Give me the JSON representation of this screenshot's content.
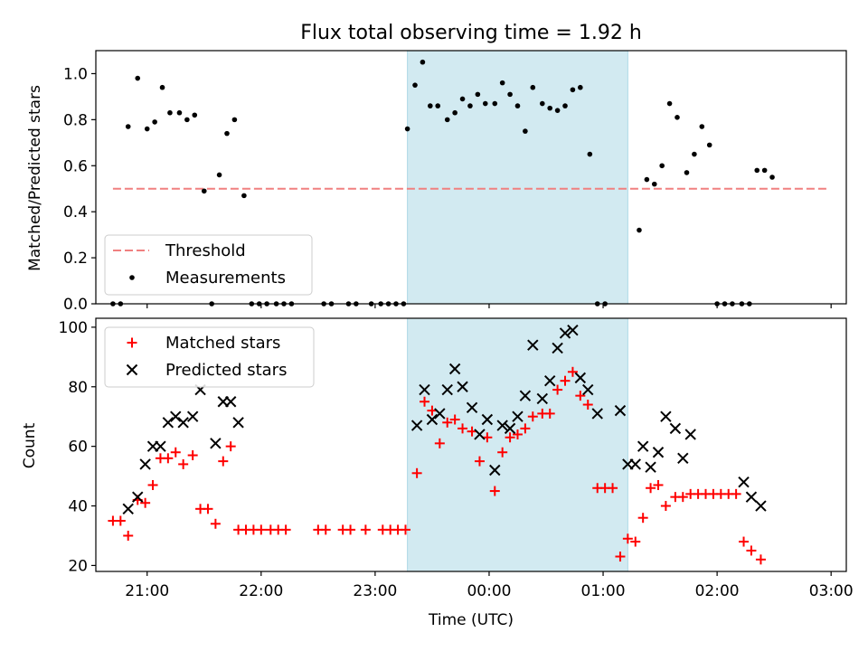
{
  "chart_data": [
    {
      "type": "scatter",
      "title": "Flux total observing time = 1.92 h",
      "xlabel": "",
      "ylabel": "Matched/Predicted stars",
      "ylim": [
        0,
        1.1
      ],
      "xlim": [
        "20:33",
        "03:08"
      ],
      "yticks": [
        0.0,
        0.2,
        0.4,
        0.6,
        0.8,
        1.0
      ],
      "ytick_labels": [
        "0.0",
        "0.2",
        "0.4",
        "0.6",
        "0.8",
        "1.0"
      ],
      "shaded_interval": [
        "23:17",
        "01:13"
      ],
      "shade_color": "#add8e6",
      "legend_position": "lower-left",
      "threshold": {
        "name": "Threshold",
        "value": 0.5,
        "x_range": [
          "20:42",
          "02:58"
        ],
        "color": "#f08080",
        "style": "dashed"
      },
      "series": [
        {
          "name": "Measurements",
          "color": "#000000",
          "marker": "dot",
          "points": [
            [
              "20:42",
              0.0
            ],
            [
              "20:46",
              0.0
            ],
            [
              "20:50",
              0.77
            ],
            [
              "20:55",
              0.98
            ],
            [
              "21:00",
              0.76
            ],
            [
              "21:04",
              0.79
            ],
            [
              "21:08",
              0.94
            ],
            [
              "21:12",
              0.83
            ],
            [
              "21:17",
              0.83
            ],
            [
              "21:21",
              0.8
            ],
            [
              "21:25",
              0.82
            ],
            [
              "21:30",
              0.49
            ],
            [
              "21:34",
              0.0
            ],
            [
              "21:38",
              0.56
            ],
            [
              "21:42",
              0.74
            ],
            [
              "21:46",
              0.8
            ],
            [
              "21:51",
              0.47
            ],
            [
              "21:55",
              0.0
            ],
            [
              "21:59",
              0.0
            ],
            [
              "22:03",
              0.0
            ],
            [
              "22:08",
              0.0
            ],
            [
              "22:12",
              0.0
            ],
            [
              "22:16",
              0.0
            ],
            [
              "22:33",
              0.0
            ],
            [
              "22:37",
              0.0
            ],
            [
              "22:46",
              0.0
            ],
            [
              "22:50",
              0.0
            ],
            [
              "22:58",
              0.0
            ],
            [
              "23:03",
              0.0
            ],
            [
              "23:07",
              0.0
            ],
            [
              "23:11",
              0.0
            ],
            [
              "23:15",
              0.0
            ],
            [
              "23:17",
              0.76
            ],
            [
              "23:21",
              0.95
            ],
            [
              "23:25",
              1.05
            ],
            [
              "23:29",
              0.86
            ],
            [
              "23:33",
              0.86
            ],
            [
              "23:38",
              0.8
            ],
            [
              "23:42",
              0.83
            ],
            [
              "23:46",
              0.89
            ],
            [
              "23:50",
              0.86
            ],
            [
              "23:54",
              0.91
            ],
            [
              "23:58",
              0.87
            ],
            [
              "00:03",
              0.87
            ],
            [
              "00:07",
              0.96
            ],
            [
              "00:11",
              0.91
            ],
            [
              "00:15",
              0.86
            ],
            [
              "00:19",
              0.75
            ],
            [
              "00:23",
              0.94
            ],
            [
              "00:28",
              0.87
            ],
            [
              "00:32",
              0.85
            ],
            [
              "00:36",
              0.84
            ],
            [
              "00:40",
              0.86
            ],
            [
              "00:44",
              0.93
            ],
            [
              "00:48",
              0.94
            ],
            [
              "00:53",
              0.65
            ],
            [
              "00:57",
              0.0
            ],
            [
              "01:01",
              0.0
            ],
            [
              "01:19",
              0.32
            ],
            [
              "01:23",
              0.54
            ],
            [
              "01:27",
              0.52
            ],
            [
              "01:31",
              0.6
            ],
            [
              "01:35",
              0.87
            ],
            [
              "01:39",
              0.81
            ],
            [
              "01:44",
              0.57
            ],
            [
              "01:48",
              0.65
            ],
            [
              "01:52",
              0.77
            ],
            [
              "01:56",
              0.69
            ],
            [
              "02:00",
              0.0
            ],
            [
              "02:04",
              0.0
            ],
            [
              "02:08",
              0.0
            ],
            [
              "02:13",
              0.0
            ],
            [
              "02:17",
              0.0
            ],
            [
              "02:21",
              0.58
            ],
            [
              "02:25",
              0.58
            ],
            [
              "02:29",
              0.55
            ]
          ]
        }
      ]
    },
    {
      "type": "scatter",
      "title": "",
      "xlabel": "Time (UTC)",
      "ylabel": "Count",
      "ylim": [
        18,
        103
      ],
      "xlim": [
        "20:33",
        "03:08"
      ],
      "yticks": [
        20,
        40,
        60,
        80,
        100
      ],
      "ytick_labels": [
        "20",
        "40",
        "60",
        "80",
        "100"
      ],
      "xticks": [
        "21:00",
        "22:00",
        "23:00",
        "00:00",
        "01:00",
        "02:00",
        "03:00"
      ],
      "shaded_interval": [
        "23:17",
        "01:13"
      ],
      "shade_color": "#add8e6",
      "legend_position": "upper-left",
      "series": [
        {
          "name": "Matched stars",
          "color": "#ff0000",
          "marker": "plus",
          "points": [
            [
              "20:42",
              35
            ],
            [
              "20:46",
              35
            ],
            [
              "20:50",
              30
            ],
            [
              "20:55",
              42
            ],
            [
              "20:59",
              41
            ],
            [
              "21:03",
              47
            ],
            [
              "21:07",
              56
            ],
            [
              "21:11",
              56
            ],
            [
              "21:15",
              58
            ],
            [
              "21:19",
              54
            ],
            [
              "21:24",
              57
            ],
            [
              "21:28",
              39
            ],
            [
              "21:32",
              39
            ],
            [
              "21:36",
              34
            ],
            [
              "21:40",
              55
            ],
            [
              "21:44",
              60
            ],
            [
              "21:48",
              32
            ],
            [
              "21:52",
              32
            ],
            [
              "21:56",
              32
            ],
            [
              "22:00",
              32
            ],
            [
              "22:05",
              32
            ],
            [
              "22:09",
              32
            ],
            [
              "22:13",
              32
            ],
            [
              "22:30",
              32
            ],
            [
              "22:34",
              32
            ],
            [
              "22:43",
              32
            ],
            [
              "22:47",
              32
            ],
            [
              "22:55",
              32
            ],
            [
              "23:04",
              32
            ],
            [
              "23:08",
              32
            ],
            [
              "23:12",
              32
            ],
            [
              "23:16",
              32
            ],
            [
              "23:22",
              51
            ],
            [
              "23:26",
              75
            ],
            [
              "23:30",
              72
            ],
            [
              "23:34",
              61
            ],
            [
              "23:38",
              68
            ],
            [
              "23:42",
              69
            ],
            [
              "23:46",
              66
            ],
            [
              "23:51",
              65
            ],
            [
              "23:55",
              55
            ],
            [
              "23:59",
              63
            ],
            [
              "00:03",
              45
            ],
            [
              "00:07",
              58
            ],
            [
              "00:11",
              63
            ],
            [
              "00:15",
              64
            ],
            [
              "00:19",
              66
            ],
            [
              "00:23",
              70
            ],
            [
              "00:28",
              71
            ],
            [
              "00:32",
              71
            ],
            [
              "00:36",
              79
            ],
            [
              "00:40",
              82
            ],
            [
              "00:44",
              85
            ],
            [
              "00:48",
              77
            ],
            [
              "00:52",
              74
            ],
            [
              "00:57",
              46
            ],
            [
              "01:01",
              46
            ],
            [
              "01:05",
              46
            ],
            [
              "01:09",
              23
            ],
            [
              "01:13",
              29
            ],
            [
              "01:17",
              28
            ],
            [
              "01:21",
              36
            ],
            [
              "01:25",
              46
            ],
            [
              "01:29",
              47
            ],
            [
              "01:33",
              40
            ],
            [
              "01:38",
              43
            ],
            [
              "01:42",
              43
            ],
            [
              "01:46",
              44
            ],
            [
              "01:50",
              44
            ],
            [
              "01:54",
              44
            ],
            [
              "01:58",
              44
            ],
            [
              "02:02",
              44
            ],
            [
              "02:06",
              44
            ],
            [
              "02:10",
              44
            ],
            [
              "02:14",
              28
            ],
            [
              "02:18",
              25
            ],
            [
              "02:23",
              22
            ]
          ]
        },
        {
          "name": "Predicted stars",
          "color": "#000000",
          "marker": "x",
          "points": [
            [
              "20:50",
              39
            ],
            [
              "20:55",
              43
            ],
            [
              "20:59",
              54
            ],
            [
              "21:03",
              60
            ],
            [
              "21:07",
              60
            ],
            [
              "21:11",
              68
            ],
            [
              "21:15",
              70
            ],
            [
              "21:19",
              68
            ],
            [
              "21:24",
              70
            ],
            [
              "21:28",
              79
            ],
            [
              "21:36",
              61
            ],
            [
              "21:40",
              75
            ],
            [
              "21:44",
              75
            ],
            [
              "21:48",
              68
            ],
            [
              "23:22",
              67
            ],
            [
              "23:26",
              79
            ],
            [
              "23:30",
              69
            ],
            [
              "23:34",
              71
            ],
            [
              "23:38",
              79
            ],
            [
              "23:42",
              86
            ],
            [
              "23:46",
              80
            ],
            [
              "23:51",
              73
            ],
            [
              "23:55",
              64
            ],
            [
              "23:59",
              69
            ],
            [
              "00:03",
              52
            ],
            [
              "00:07",
              67
            ],
            [
              "00:11",
              66
            ],
            [
              "00:15",
              70
            ],
            [
              "00:19",
              77
            ],
            [
              "00:23",
              94
            ],
            [
              "00:28",
              76
            ],
            [
              "00:32",
              82
            ],
            [
              "00:36",
              93
            ],
            [
              "00:40",
              98
            ],
            [
              "00:44",
              99
            ],
            [
              "00:48",
              83
            ],
            [
              "00:52",
              79
            ],
            [
              "00:57",
              71
            ],
            [
              "01:09",
              72
            ],
            [
              "01:13",
              54
            ],
            [
              "01:17",
              54
            ],
            [
              "01:21",
              60
            ],
            [
              "01:25",
              53
            ],
            [
              "01:29",
              58
            ],
            [
              "01:33",
              70
            ],
            [
              "01:38",
              66
            ],
            [
              "01:42",
              56
            ],
            [
              "01:46",
              64
            ],
            [
              "02:14",
              48
            ],
            [
              "02:18",
              43
            ],
            [
              "02:23",
              40
            ]
          ]
        }
      ]
    }
  ]
}
